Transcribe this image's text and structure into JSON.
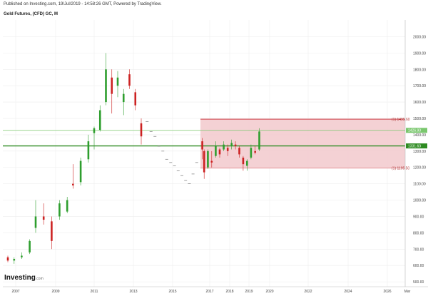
{
  "header": {
    "published": "Published on Investing.com, 19/Jul/2019 - 14:58:26 GMT, Powered by TradingView.",
    "title": "Gold Futures, (CFD) GC, M"
  },
  "logo": {
    "main": "Investing",
    "suffix": ".com"
  },
  "colors": {
    "up": "#2e9e2e",
    "down": "#cc2222",
    "band_fill": "#f2c9cc",
    "band_line": "#c8232c",
    "support": "#2e8b22",
    "resistance": "#7ac76e",
    "grid": "#eeeeee"
  },
  "chart_data": {
    "type": "candlestick",
    "x_ticks": [
      "2007",
      "2009",
      "2011",
      "2013",
      "2015",
      "2017",
      "2018",
      "2019",
      "2020",
      "2022",
      "2024",
      "2026",
      "Mar"
    ],
    "y_ticks": [
      "2000.00",
      "1900.00",
      "1800.00",
      "1700.00",
      "1600.00",
      "1500.00",
      "1400.00",
      "1300.00",
      "1200.00",
      "1100.00",
      "1000.00",
      "900.00",
      "800.00",
      "700.00",
      "600.00",
      "500.00"
    ],
    "ylim": [
      470,
      2050
    ],
    "horizontal_lines": [
      {
        "label": "1426.90",
        "value": 1426.9
      },
      {
        "label": "1331.60",
        "value": 1331.6
      }
    ],
    "band": {
      "top_label": "(1) 1495.60",
      "bottom_label": "(1) 1195.50",
      "top": 1495.6,
      "bottom": 1195.5
    },
    "candles": [
      {
        "x": 2006.5,
        "o": 650,
        "c": 630,
        "h": 660,
        "l": 620
      },
      {
        "x": 2006.9,
        "o": 630,
        "c": 640,
        "h": 650,
        "l": 610
      },
      {
        "x": 2007.3,
        "o": 650,
        "c": 660,
        "h": 680,
        "l": 640
      },
      {
        "x": 2007.7,
        "o": 680,
        "c": 750,
        "h": 760,
        "l": 670
      },
      {
        "x": 2008.0,
        "o": 830,
        "c": 900,
        "h": 1000,
        "l": 800
      },
      {
        "x": 2008.4,
        "o": 900,
        "c": 880,
        "h": 980,
        "l": 850
      },
      {
        "x": 2008.8,
        "o": 870,
        "c": 750,
        "h": 900,
        "l": 700
      },
      {
        "x": 2009.2,
        "o": 900,
        "c": 980,
        "h": 1000,
        "l": 880
      },
      {
        "x": 2009.6,
        "o": 930,
        "c": 1000,
        "h": 1020,
        "l": 920
      },
      {
        "x": 2009.9,
        "o": 1100,
        "c": 1090,
        "h": 1220,
        "l": 1070
      },
      {
        "x": 2010.3,
        "o": 1110,
        "c": 1240,
        "h": 1260,
        "l": 1090
      },
      {
        "x": 2010.7,
        "o": 1250,
        "c": 1360,
        "h": 1400,
        "l": 1230
      },
      {
        "x": 2011.0,
        "o": 1410,
        "c": 1440,
        "h": 1450,
        "l": 1310
      },
      {
        "x": 2011.3,
        "o": 1430,
        "c": 1550,
        "h": 1580,
        "l": 1420
      },
      {
        "x": 2011.6,
        "o": 1600,
        "c": 1800,
        "h": 1900,
        "l": 1580
      },
      {
        "x": 2011.9,
        "o": 1750,
        "c": 1650,
        "h": 1800,
        "l": 1530
      },
      {
        "x": 2012.2,
        "o": 1700,
        "c": 1750,
        "h": 1790,
        "l": 1630
      },
      {
        "x": 2012.5,
        "o": 1600,
        "c": 1650,
        "h": 1680,
        "l": 1520
      },
      {
        "x": 2012.8,
        "o": 1770,
        "c": 1700,
        "h": 1800,
        "l": 1680
      },
      {
        "x": 2013.1,
        "o": 1660,
        "c": 1580,
        "h": 1680,
        "l": 1550
      },
      {
        "x": 2013.4,
        "o": 1470,
        "c": 1390,
        "h": 1500,
        "l": 1340
      },
      {
        "x": 2016.6,
        "o": 1360,
        "c": 1310,
        "h": 1380,
        "l": 1250
      },
      {
        "x": 2016.7,
        "o": 1300,
        "c": 1170,
        "h": 1310,
        "l": 1130
      },
      {
        "x": 2016.9,
        "o": 1200,
        "c": 1300,
        "h": 1310,
        "l": 1190
      },
      {
        "x": 2017.1,
        "o": 1240,
        "c": 1230,
        "h": 1300,
        "l": 1200
      },
      {
        "x": 2017.3,
        "o": 1270,
        "c": 1330,
        "h": 1360,
        "l": 1260
      },
      {
        "x": 2017.5,
        "o": 1310,
        "c": 1280,
        "h": 1320,
        "l": 1260
      },
      {
        "x": 2017.7,
        "o": 1310,
        "c": 1340,
        "h": 1360,
        "l": 1300
      },
      {
        "x": 2017.9,
        "o": 1320,
        "c": 1300,
        "h": 1340,
        "l": 1270
      },
      {
        "x": 2018.1,
        "o": 1330,
        "c": 1350,
        "h": 1370,
        "l": 1310
      },
      {
        "x": 2018.3,
        "o": 1340,
        "c": 1330,
        "h": 1360,
        "l": 1310
      },
      {
        "x": 2018.5,
        "o": 1320,
        "c": 1280,
        "h": 1330,
        "l": 1260
      },
      {
        "x": 2018.7,
        "o": 1260,
        "c": 1220,
        "h": 1270,
        "l": 1180
      },
      {
        "x": 2018.9,
        "o": 1210,
        "c": 1240,
        "h": 1250,
        "l": 1180
      },
      {
        "x": 2019.1,
        "o": 1260,
        "c": 1320,
        "h": 1340,
        "l": 1250
      },
      {
        "x": 2019.3,
        "o": 1300,
        "c": 1290,
        "h": 1330,
        "l": 1280
      },
      {
        "x": 2019.5,
        "o": 1310,
        "c": 1420,
        "h": 1440,
        "l": 1300
      }
    ],
    "dashes": [
      {
        "x": 2013.7,
        "y": 1480
      },
      {
        "x": 2013.9,
        "y": 1420
      },
      {
        "x": 2014.1,
        "y": 1390
      },
      {
        "x": 2014.3,
        "y": 1330
      },
      {
        "x": 2014.5,
        "y": 1300
      },
      {
        "x": 2014.7,
        "y": 1250
      },
      {
        "x": 2014.9,
        "y": 1230
      },
      {
        "x": 2015.1,
        "y": 1210
      },
      {
        "x": 2015.3,
        "y": 1180
      },
      {
        "x": 2015.5,
        "y": 1150
      },
      {
        "x": 2015.7,
        "y": 1120
      },
      {
        "x": 2015.9,
        "y": 1100
      },
      {
        "x": 2016.1,
        "y": 1160
      },
      {
        "x": 2016.3,
        "y": 1230
      }
    ]
  }
}
